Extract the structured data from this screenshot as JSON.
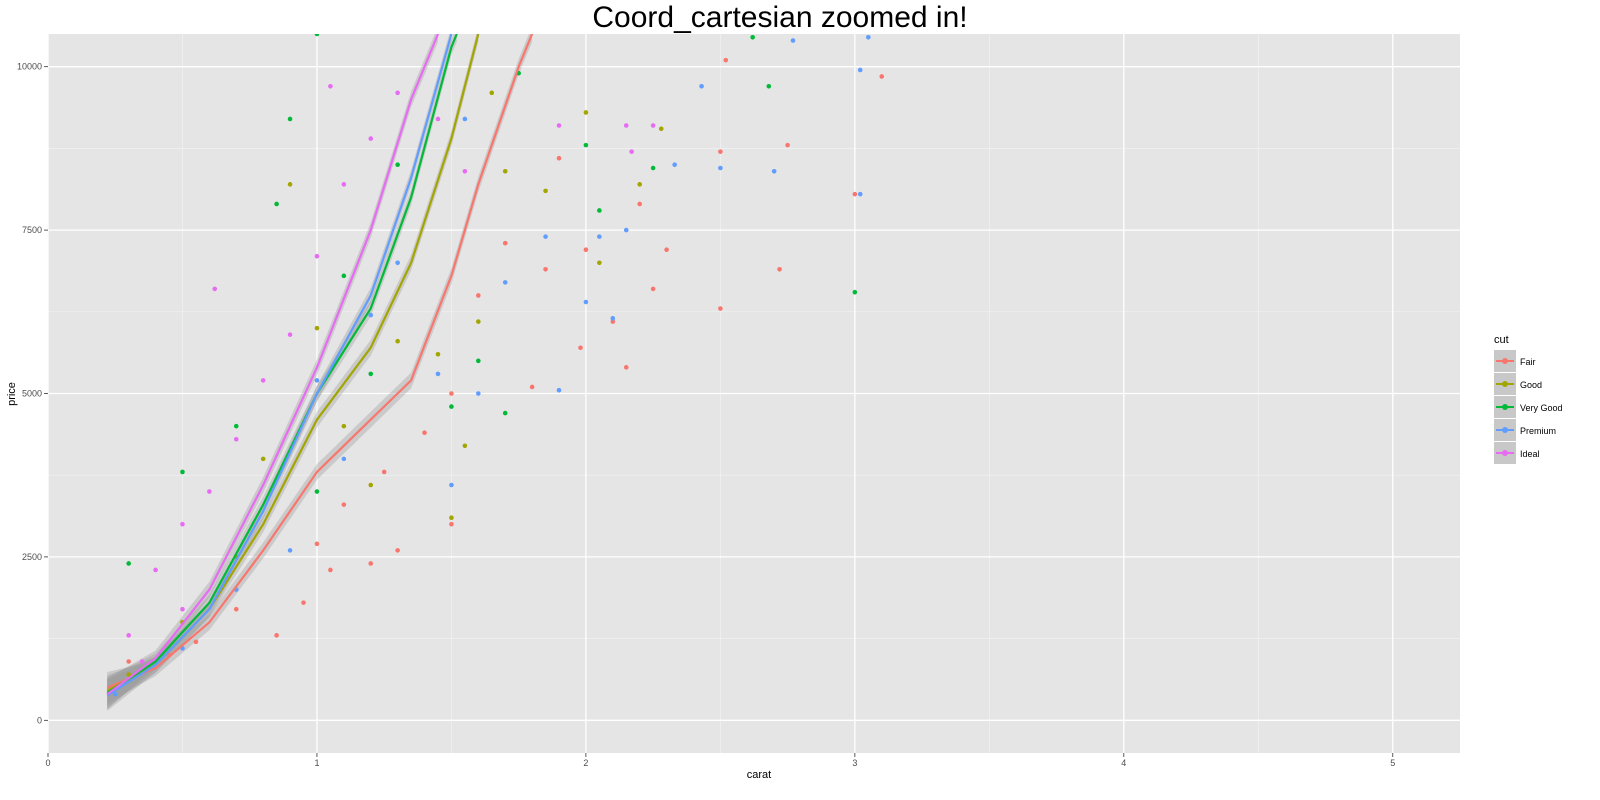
{
  "chart_data": {
    "type": "scatter",
    "title": "Coord_cartesian zoomed in!",
    "xlabel": "carat",
    "ylabel": "price",
    "xlim": [
      0,
      5.25
    ],
    "ylim": [
      -500,
      10500
    ],
    "x_ticks": [
      "0",
      "1",
      "2",
      "3",
      "4",
      "5"
    ],
    "x_tick_values": [
      0,
      1,
      2,
      3,
      4,
      5
    ],
    "y_ticks": [
      "0",
      "2500",
      "5000",
      "7500",
      "10000"
    ],
    "y_tick_values": [
      0,
      2500,
      5000,
      7500,
      10000
    ],
    "grid": true,
    "legend": {
      "title": "cut",
      "position": "right"
    },
    "series": [
      {
        "name": "Fair",
        "color": "#F8766D",
        "smooth": [
          [
            0.22,
            500
          ],
          [
            0.4,
            800
          ],
          [
            0.6,
            1500
          ],
          [
            0.8,
            2600
          ],
          [
            1.0,
            3800
          ],
          [
            1.2,
            4600
          ],
          [
            1.35,
            5200
          ],
          [
            1.5,
            6800
          ],
          [
            1.6,
            8200
          ],
          [
            1.75,
            10000
          ],
          [
            1.8,
            10500
          ]
        ],
        "points": [
          [
            0.3,
            900
          ],
          [
            0.45,
            1000
          ],
          [
            0.55,
            1200
          ],
          [
            0.7,
            1700
          ],
          [
            0.85,
            1300
          ],
          [
            0.95,
            1800
          ],
          [
            1.0,
            2700
          ],
          [
            1.05,
            2300
          ],
          [
            1.1,
            3300
          ],
          [
            1.2,
            2400
          ],
          [
            1.25,
            3800
          ],
          [
            1.3,
            2600
          ],
          [
            1.4,
            4400
          ],
          [
            1.5,
            5000
          ],
          [
            1.5,
            3000
          ],
          [
            1.6,
            6500
          ],
          [
            1.8,
            5100
          ],
          [
            1.85,
            6900
          ],
          [
            1.98,
            5700
          ],
          [
            2.0,
            7200
          ],
          [
            2.1,
            6100
          ],
          [
            2.15,
            5400
          ],
          [
            2.2,
            7900
          ],
          [
            2.25,
            6600
          ],
          [
            2.3,
            7200
          ],
          [
            2.5,
            8700
          ],
          [
            2.5,
            6300
          ],
          [
            2.72,
            6900
          ],
          [
            2.75,
            8800
          ],
          [
            3.0,
            8050
          ],
          [
            3.1,
            9850
          ],
          [
            2.52,
            10100
          ],
          [
            1.9,
            8600
          ],
          [
            1.7,
            7300
          ]
        ]
      },
      {
        "name": "Good",
        "color": "#A3A500",
        "smooth": [
          [
            0.22,
            450
          ],
          [
            0.4,
            850
          ],
          [
            0.6,
            1700
          ],
          [
            0.8,
            3000
          ],
          [
            1.0,
            4600
          ],
          [
            1.2,
            5700
          ],
          [
            1.35,
            7000
          ],
          [
            1.5,
            8900
          ],
          [
            1.6,
            10500
          ]
        ],
        "points": [
          [
            0.3,
            700
          ],
          [
            0.5,
            1500
          ],
          [
            0.7,
            2500
          ],
          [
            0.9,
            8200
          ],
          [
            1.0,
            6000
          ],
          [
            1.1,
            4500
          ],
          [
            1.2,
            3600
          ],
          [
            1.3,
            5800
          ],
          [
            1.45,
            5600
          ],
          [
            1.5,
            3100
          ],
          [
            1.6,
            6100
          ],
          [
            1.7,
            8400
          ],
          [
            1.85,
            8100
          ],
          [
            2.05,
            7000
          ],
          [
            2.0,
            9300
          ],
          [
            2.2,
            8200
          ],
          [
            2.28,
            9050
          ],
          [
            1.55,
            4200
          ],
          [
            1.65,
            9600
          ],
          [
            0.8,
            4000
          ]
        ]
      },
      {
        "name": "Very Good",
        "color": "#00BA38",
        "smooth": [
          [
            0.22,
            420
          ],
          [
            0.4,
            900
          ],
          [
            0.6,
            1800
          ],
          [
            0.8,
            3300
          ],
          [
            1.0,
            5000
          ],
          [
            1.2,
            6300
          ],
          [
            1.35,
            8000
          ],
          [
            1.5,
            10300
          ],
          [
            1.52,
            10500
          ]
        ],
        "points": [
          [
            0.3,
            2400
          ],
          [
            0.5,
            3800
          ],
          [
            0.7,
            4500
          ],
          [
            0.85,
            7900
          ],
          [
            0.9,
            9200
          ],
          [
            1.0,
            10500
          ],
          [
            1.1,
            6800
          ],
          [
            1.2,
            5300
          ],
          [
            1.3,
            8500
          ],
          [
            1.5,
            4800
          ],
          [
            1.7,
            4700
          ],
          [
            1.75,
            9900
          ],
          [
            2.0,
            8800
          ],
          [
            2.05,
            7800
          ],
          [
            2.25,
            8450
          ],
          [
            2.62,
            10450
          ],
          [
            2.68,
            9700
          ],
          [
            3.0,
            6550
          ],
          [
            1.6,
            5500
          ],
          [
            1.0,
            3500
          ]
        ]
      },
      {
        "name": "Premium",
        "color": "#619CFF",
        "smooth": [
          [
            0.22,
            380
          ],
          [
            0.4,
            850
          ],
          [
            0.6,
            1700
          ],
          [
            0.8,
            3200
          ],
          [
            1.0,
            5000
          ],
          [
            1.2,
            6500
          ],
          [
            1.35,
            8300
          ],
          [
            1.5,
            10500
          ]
        ],
        "points": [
          [
            0.25,
            400
          ],
          [
            0.5,
            1100
          ],
          [
            0.7,
            2000
          ],
          [
            0.9,
            2600
          ],
          [
            1.0,
            5200
          ],
          [
            1.1,
            4000
          ],
          [
            1.2,
            6200
          ],
          [
            1.3,
            7000
          ],
          [
            1.45,
            5300
          ],
          [
            1.5,
            3600
          ],
          [
            1.6,
            5000
          ],
          [
            1.7,
            6700
          ],
          [
            1.85,
            7400
          ],
          [
            1.9,
            5050
          ],
          [
            2.0,
            6400
          ],
          [
            2.05,
            7400
          ],
          [
            2.1,
            6150
          ],
          [
            2.15,
            7500
          ],
          [
            2.33,
            8500
          ],
          [
            2.5,
            8450
          ],
          [
            2.43,
            9700
          ],
          [
            2.7,
            8400
          ],
          [
            3.02,
            8050
          ],
          [
            3.02,
            9950
          ],
          [
            2.77,
            10400
          ],
          [
            3.05,
            10450
          ],
          [
            1.55,
            9200
          ]
        ]
      },
      {
        "name": "Ideal",
        "color": "#E76BF3",
        "smooth": [
          [
            0.22,
            400
          ],
          [
            0.4,
            950
          ],
          [
            0.6,
            2000
          ],
          [
            0.8,
            3600
          ],
          [
            1.0,
            5400
          ],
          [
            1.2,
            7500
          ],
          [
            1.35,
            9500
          ],
          [
            1.45,
            10500
          ]
        ],
        "points": [
          [
            0.3,
            1300
          ],
          [
            0.4,
            2300
          ],
          [
            0.5,
            3000
          ],
          [
            0.6,
            3500
          ],
          [
            0.62,
            6600
          ],
          [
            0.7,
            4300
          ],
          [
            0.8,
            5200
          ],
          [
            0.9,
            5900
          ],
          [
            1.0,
            7100
          ],
          [
            1.05,
            9700
          ],
          [
            1.1,
            8200
          ],
          [
            1.2,
            8900
          ],
          [
            1.3,
            9600
          ],
          [
            1.45,
            9200
          ],
          [
            1.55,
            8400
          ],
          [
            1.9,
            9100
          ],
          [
            2.15,
            9100
          ],
          [
            2.17,
            8700
          ],
          [
            2.25,
            9100
          ],
          [
            0.5,
            1700
          ],
          [
            0.35,
            900
          ]
        ]
      }
    ]
  }
}
